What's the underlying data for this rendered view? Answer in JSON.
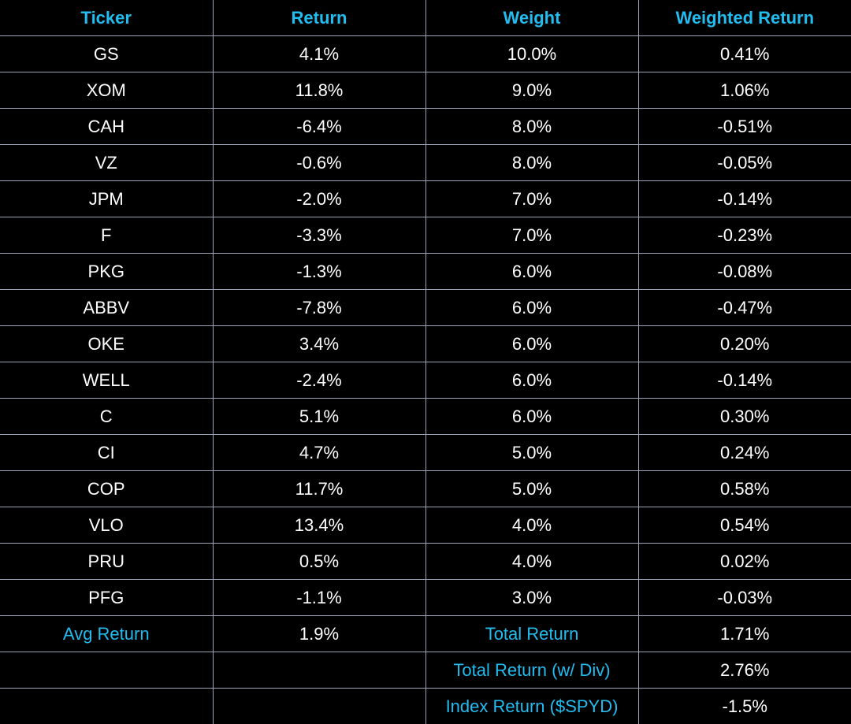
{
  "headers": [
    "Ticker",
    "Return",
    "Weight",
    "Weighted Return"
  ],
  "rows": [
    [
      "GS",
      "4.1%",
      "10.0%",
      "0.41%"
    ],
    [
      "XOM",
      "11.8%",
      "9.0%",
      "1.06%"
    ],
    [
      "CAH",
      "-6.4%",
      "8.0%",
      "-0.51%"
    ],
    [
      "VZ",
      "-0.6%",
      "8.0%",
      "-0.05%"
    ],
    [
      "JPM",
      "-2.0%",
      "7.0%",
      "-0.14%"
    ],
    [
      "F",
      "-3.3%",
      "7.0%",
      "-0.23%"
    ],
    [
      "PKG",
      "-1.3%",
      "6.0%",
      "-0.08%"
    ],
    [
      "ABBV",
      "-7.8%",
      "6.0%",
      "-0.47%"
    ],
    [
      "OKE",
      "3.4%",
      "6.0%",
      "0.20%"
    ],
    [
      "WELL",
      "-2.4%",
      "6.0%",
      "-0.14%"
    ],
    [
      "C",
      "5.1%",
      "6.0%",
      "0.30%"
    ],
    [
      "CI",
      "4.7%",
      "5.0%",
      "0.24%"
    ],
    [
      "COP",
      "11.7%",
      "5.0%",
      "0.58%"
    ],
    [
      "VLO",
      "13.4%",
      "4.0%",
      "0.54%"
    ],
    [
      "PRU",
      "0.5%",
      "4.0%",
      "0.02%"
    ],
    [
      "PFG",
      "-1.1%",
      "3.0%",
      "-0.03%"
    ]
  ],
  "summary": {
    "avg_return_label": "Avg Return",
    "avg_return": "1.9%",
    "total_return_label": "Total Return",
    "total_return": "1.71%",
    "total_return_div_label": "Total Return (w/ Div)",
    "total_return_div": "2.76%",
    "index_return_label": "Index Return ($SPYD)",
    "index_return": "-1.5%"
  },
  "colors": {
    "accent": "#22bdf0",
    "background": "#000000",
    "border": "#9aa3b8",
    "text": "#ffffff"
  }
}
